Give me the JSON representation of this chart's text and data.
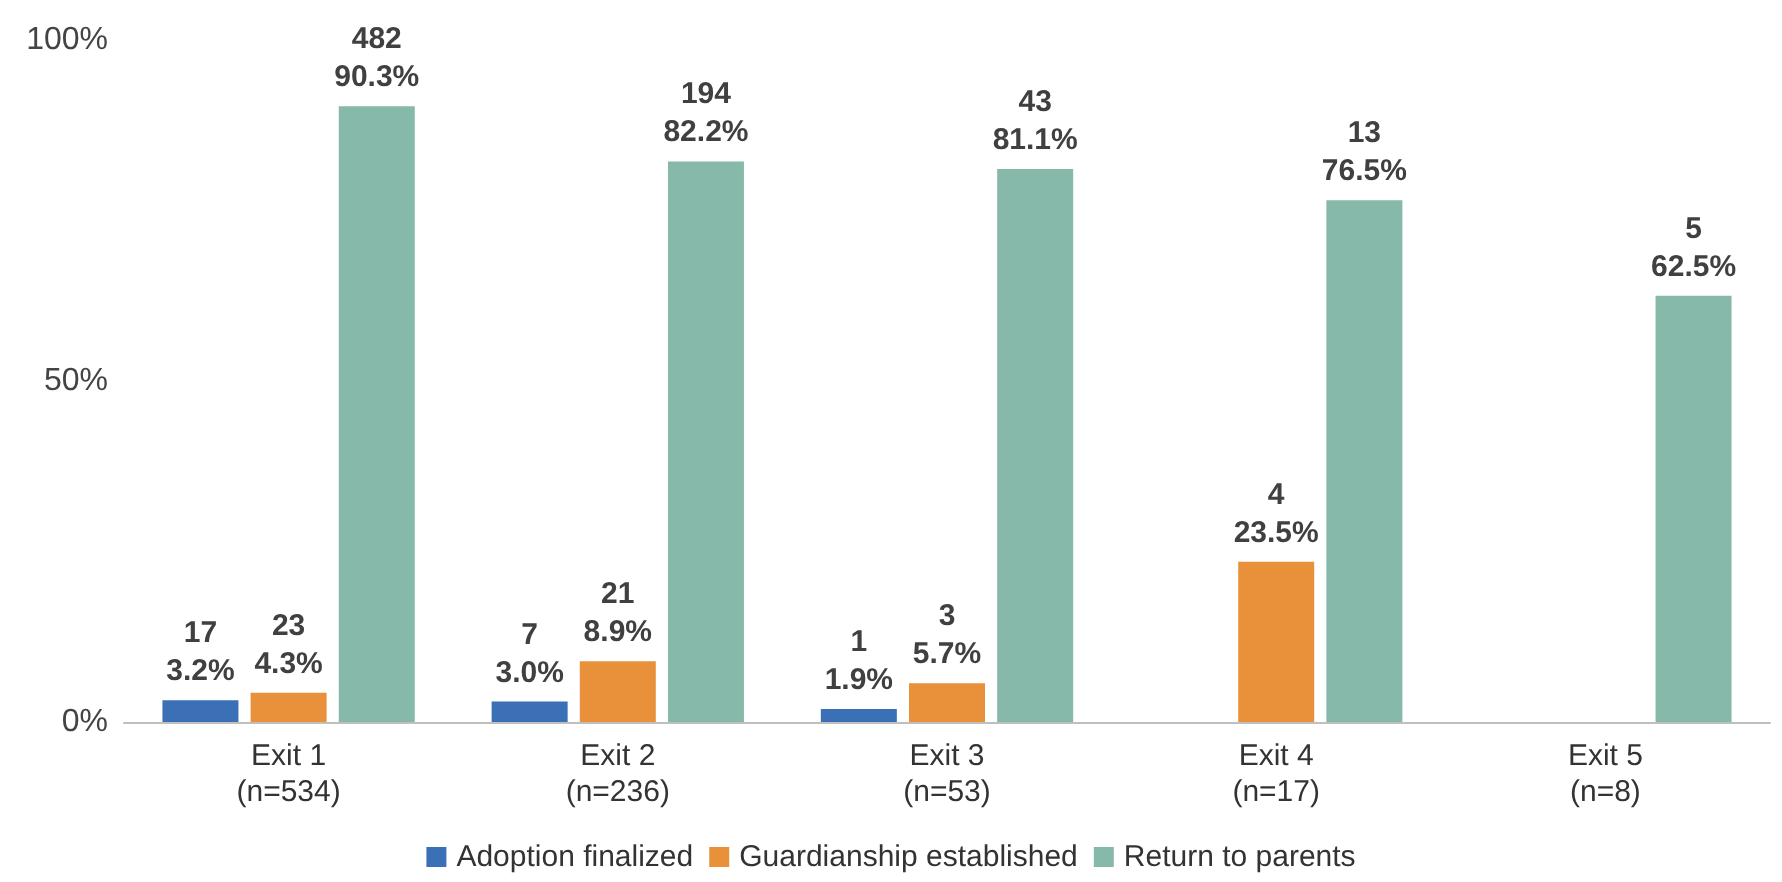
{
  "chart_data": {
    "type": "bar",
    "categories": [
      "Exit 1\n(n=534)",
      "Exit 2\n(n=236)",
      "Exit 3\n(n=53)",
      "Exit 4\n(n=17)",
      "Exit 5\n(n=8)"
    ],
    "series": [
      {
        "name": "Adoption finalized",
        "color": "#3b6fb6",
        "values": [
          3.2,
          3.0,
          1.9,
          null,
          null
        ],
        "value_labels": [
          "17\n3.2%",
          "7\n3.0%",
          "1\n1.9%",
          null,
          null
        ]
      },
      {
        "name": "Guardianship established",
        "color": "#e8913a",
        "values": [
          4.3,
          8.9,
          5.7,
          23.5,
          null
        ],
        "value_labels": [
          "23\n4.3%",
          "21\n8.9%",
          "3\n5.7%",
          "4\n23.5%",
          null
        ]
      },
      {
        "name": "Return to parents",
        "color": "#86b9aa",
        "values": [
          90.3,
          82.2,
          81.1,
          76.5,
          62.5
        ],
        "value_labels": [
          "482\n90.3%",
          "194\n82.2%",
          "43\n81.1%",
          "13\n76.5%",
          "5\n62.5%"
        ]
      }
    ],
    "ylim": [
      0,
      100
    ],
    "yticks": [
      {
        "value": 0,
        "label": "0%"
      },
      {
        "value": 50,
        "label": "50%"
      },
      {
        "value": 100,
        "label": "100%"
      }
    ],
    "grid": false,
    "legend": "bottom"
  }
}
